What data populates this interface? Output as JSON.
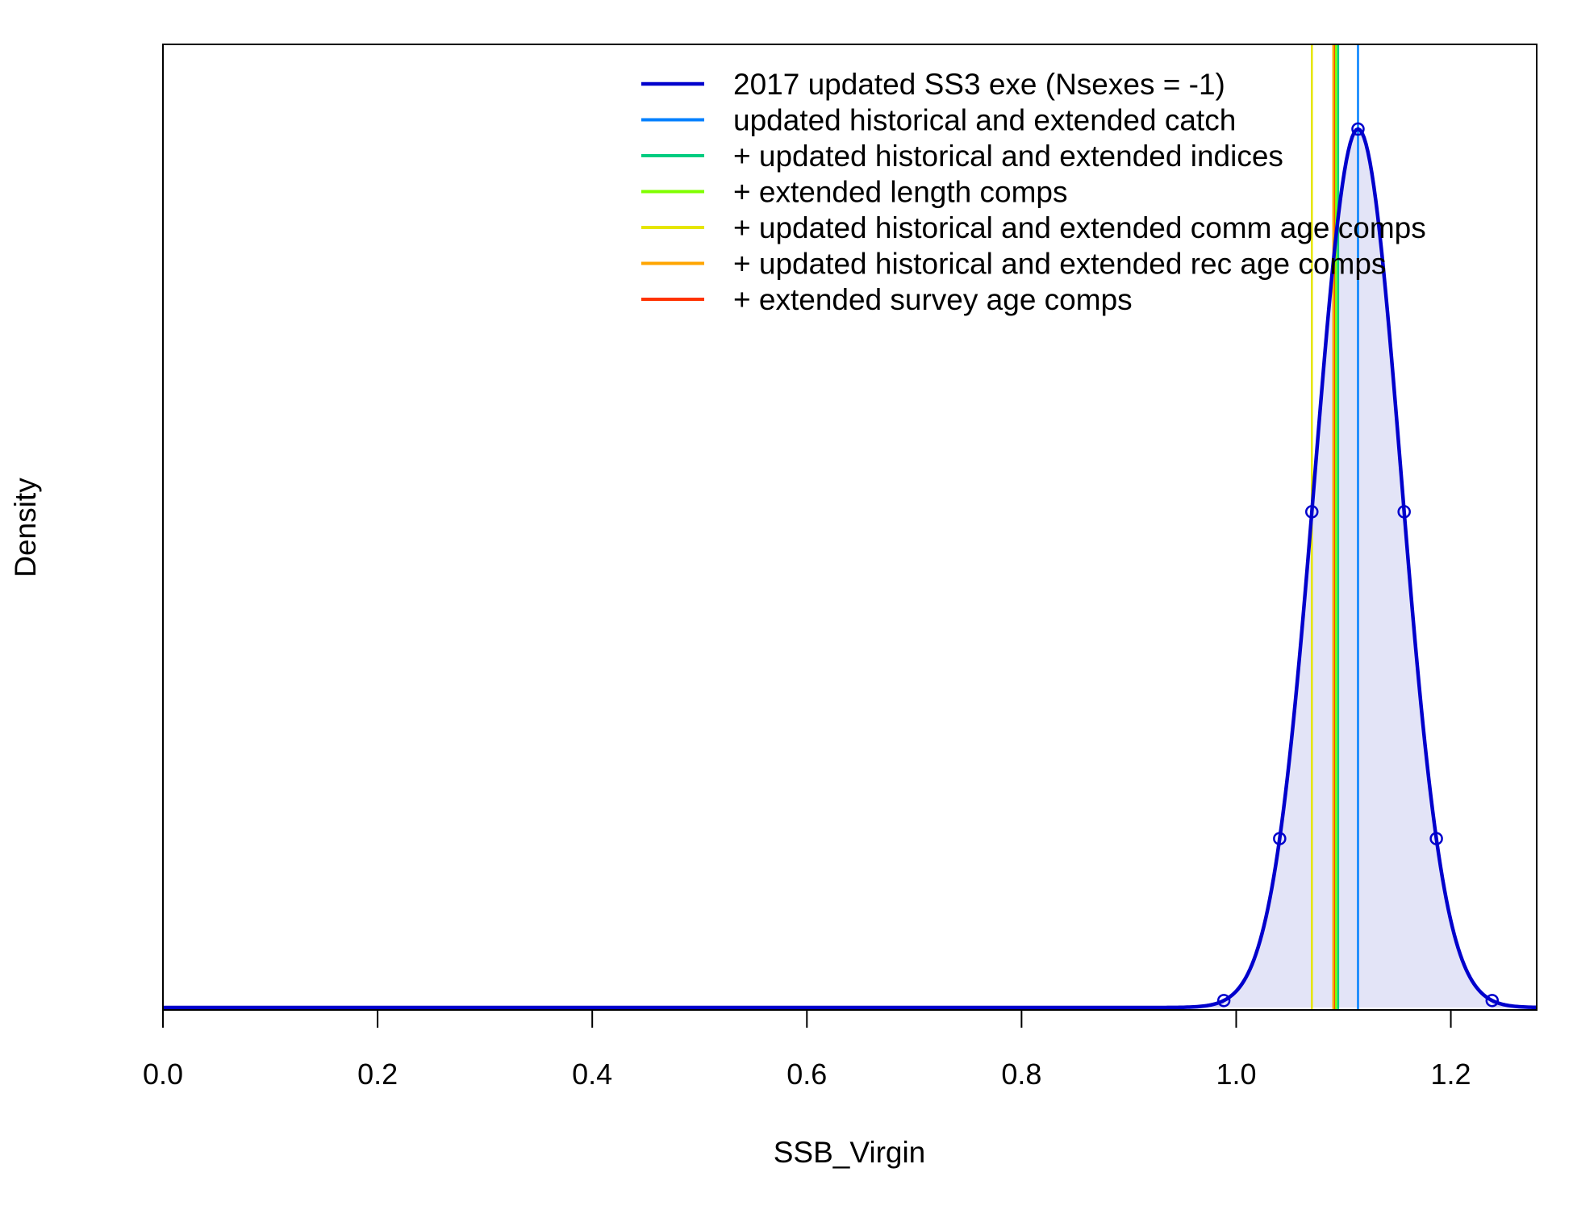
{
  "chart_data": {
    "type": "line",
    "xlabel": "SSB_Virgin",
    "ylabel": "Density",
    "xlim": [
      0.0,
      1.28
    ],
    "x_ticks": [
      0.0,
      0.2,
      0.4,
      0.6,
      0.8,
      1.0,
      1.2
    ],
    "x_tick_labels": [
      "0.0",
      "0.2",
      "0.4",
      "0.6",
      "0.8",
      "1.0",
      "1.2"
    ],
    "y_axis_drawn": false,
    "grid": false,
    "legend_position": "top-right",
    "density": {
      "series_name": "2017 updated SS3 exe (Nsexes = -1)",
      "mean": 1.1135,
      "sd": 0.0402,
      "interval_95": [
        0.9885,
        1.2385
      ],
      "quantile_points_x": [
        0.9885,
        1.0405,
        1.0705,
        1.1135,
        1.1565,
        1.1865,
        1.2385
      ],
      "line_color": "#0000CC",
      "fill_color": "#E3E4F7",
      "tail_fill_color": "#CDCEF2"
    },
    "series": [
      {
        "name": "2017 updated SS3 exe (Nsexes = -1)",
        "color": "#0000CC",
        "value": null
      },
      {
        "name": "updated historical and extended catch",
        "color": "#0080FF",
        "value": 1.1135
      },
      {
        "name": "+ updated historical and extended indices",
        "color": "#00CC80",
        "value": 1.095
      },
      {
        "name": "+ extended length comps",
        "color": "#80FF00",
        "value": 1.093
      },
      {
        "name": "+ updated historical and extended comm age comps",
        "color": "#E6E600",
        "value": 1.0705
      },
      {
        "name": "+ updated historical and extended rec age comps",
        "color": "#FFA500",
        "value": 1.0905
      },
      {
        "name": "+ extended survey age comps",
        "color": "#FF3300",
        "value": 1.0915
      }
    ]
  }
}
